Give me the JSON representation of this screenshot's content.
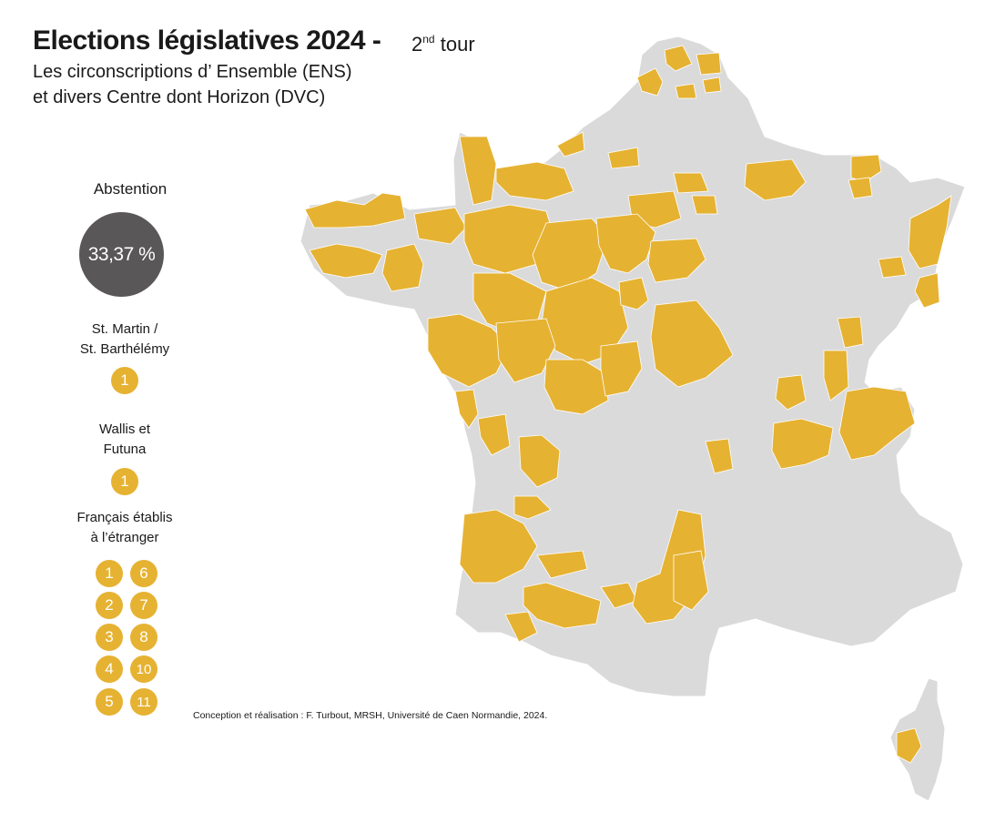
{
  "title": {
    "main": "Elections législatives 2024 -",
    "round_number": "2",
    "round_suffix": "nd",
    "round_word": "tour",
    "subtitle_line1": "Les circonscriptions d’ Ensemble (ENS)",
    "subtitle_line2": "et divers Centre dont Horizon (DVC)"
  },
  "abstention": {
    "label": "Abstention",
    "value": "33,37 %"
  },
  "overseas": [
    {
      "label_line1": "St. Martin /",
      "label_line2": "St. Barthélémy",
      "seats": [
        "1"
      ]
    },
    {
      "label_line1": "Wallis et",
      "label_line2": "Futuna",
      "seats": [
        "1"
      ]
    }
  ],
  "abroad": {
    "label_line1": "Français établis",
    "label_line2": "à l’étranger",
    "seats_col1": [
      "1",
      "2",
      "3",
      "4",
      "5"
    ],
    "seats_col2": [
      "6",
      "7",
      "8",
      "10",
      "11"
    ]
  },
  "credit": "Conception et réalisation : F. Turbout, MRSH, Université de Caen Normandie, 2024.",
  "colors": {
    "highlight": "#E6B232",
    "land": "#DADADA",
    "abstention_disc": "#595757",
    "border": "#ffffff"
  },
  "map": {
    "regions_shown": [
      "France métropolitaine",
      "Corse"
    ],
    "highlighted_category": "ENS / DVC"
  }
}
